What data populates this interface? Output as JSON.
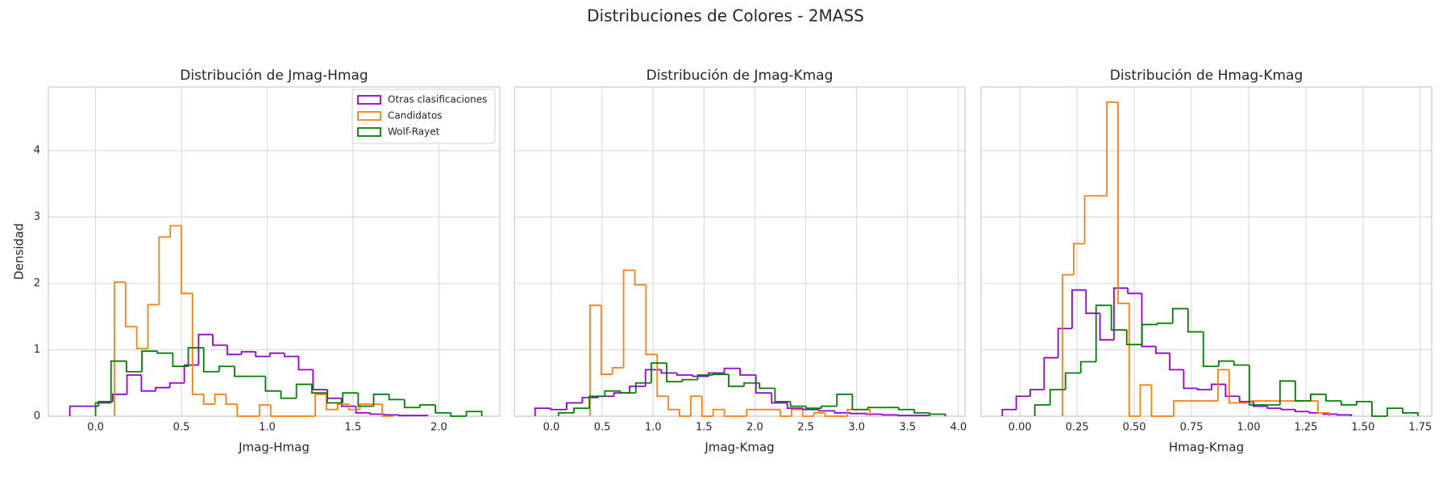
{
  "title": "Distribuciones de Colores - 2MASS",
  "chart_data": [
    {
      "type": "histogram",
      "title": "Distribución de Jmag-Hmag",
      "xlabel": "Jmag-Hmag",
      "ylabel": "Densidad",
      "xlim": [
        -0.275,
        2.355
      ],
      "ylim": [
        0,
        4.96
      ],
      "xticks": [
        {
          "value": 0,
          "label": "0.0"
        },
        {
          "value": 0.5,
          "label": "0.5"
        },
        {
          "value": 1,
          "label": "1.0"
        },
        {
          "value": 1.5,
          "label": "1.5"
        },
        {
          "value": 2,
          "label": "2.0"
        }
      ],
      "yticks": [
        0,
        1,
        2,
        3,
        4
      ],
      "show_ytick_labels": true,
      "grid": true,
      "legend": "upper right",
      "series": [
        {
          "name": "Otras clasificaciones",
          "color": "#9400d3",
          "bins": [
            -0.15,
            -0.067,
            0.017,
            0.1,
            0.183,
            0.267,
            0.35,
            0.433,
            0.517,
            0.6,
            0.683,
            0.767,
            0.85,
            0.933,
            1.017,
            1.1,
            1.183,
            1.267,
            1.35,
            1.433,
            1.517,
            1.6,
            1.683,
            1.767,
            1.85,
            1.933
          ],
          "values": [
            0.15,
            0.15,
            0.22,
            0.33,
            0.62,
            0.38,
            0.43,
            0.5,
            0.77,
            1.23,
            1.07,
            0.93,
            0.97,
            0.9,
            0.95,
            0.9,
            0.7,
            0.4,
            0.27,
            0.15,
            0.05,
            0.03,
            0.02,
            0.01,
            0.01
          ]
        },
        {
          "name": "Candidatos",
          "color": "#ff7f0e",
          "bins": [
            0.11,
            0.175,
            0.24,
            0.305,
            0.37,
            0.435,
            0.5,
            0.565,
            0.63,
            0.695,
            0.76,
            0.825,
            0.89,
            0.955,
            1.02,
            1.085,
            1.15,
            1.215,
            1.28,
            1.345,
            1.41,
            1.475,
            1.54,
            1.605,
            1.67,
            1.735
          ],
          "values": [
            2.02,
            1.35,
            1.02,
            1.68,
            2.7,
            2.87,
            1.85,
            0.33,
            0.18,
            0.33,
            0.18,
            0,
            0,
            0.17,
            0,
            0,
            0,
            0,
            0.33,
            0.1,
            0.18,
            0.1,
            0.18,
            0.18,
            0
          ]
        },
        {
          "name": "Wolf-Rayet",
          "color": "#008000",
          "bins": [
            0,
            0.09,
            0.18,
            0.27,
            0.36,
            0.45,
            0.54,
            0.63,
            0.72,
            0.81,
            0.9,
            0.99,
            1.08,
            1.17,
            1.26,
            1.35,
            1.44,
            1.53,
            1.62,
            1.71,
            1.8,
            1.89,
            1.98,
            2.07,
            2.16,
            2.25
          ],
          "values": [
            0.2,
            0.83,
            0.67,
            0.98,
            0.95,
            0.75,
            1.03,
            0.67,
            0.75,
            0.6,
            0.6,
            0.38,
            0.27,
            0.48,
            0.35,
            0.2,
            0.35,
            0.15,
            0.33,
            0.25,
            0.13,
            0.17,
            0.05,
            0,
            0.07
          ]
        }
      ]
    },
    {
      "type": "histogram",
      "title": "Distribución de Jmag-Kmag",
      "xlabel": "Jmag-Kmag",
      "xlim": [
        -0.364,
        4.064
      ],
      "ylim": [
        0,
        4.96
      ],
      "xticks": [
        {
          "value": 0,
          "label": "0.0"
        },
        {
          "value": 0.5,
          "label": "0.5"
        },
        {
          "value": 1,
          "label": "1.0"
        },
        {
          "value": 1.5,
          "label": "1.5"
        },
        {
          "value": 2,
          "label": "2.0"
        },
        {
          "value": 2.5,
          "label": "2.5"
        },
        {
          "value": 3,
          "label": "3.0"
        },
        {
          "value": 3.5,
          "label": "3.5"
        },
        {
          "value": 4,
          "label": "4.0"
        }
      ],
      "yticks": [
        0,
        1,
        2,
        3,
        4
      ],
      "show_ytick_labels": false,
      "grid": true,
      "series": [
        {
          "name": "Otras clasificaciones",
          "color": "#9400d3",
          "bins": [
            -0.16,
            -0.005,
            0.15,
            0.305,
            0.46,
            0.615,
            0.77,
            0.925,
            1.08,
            1.235,
            1.39,
            1.545,
            1.7,
            1.855,
            2.01,
            2.165,
            2.32,
            2.475,
            2.63,
            2.785,
            2.94,
            3.095,
            3.25,
            3.405,
            3.56,
            3.715
          ],
          "values": [
            0.12,
            0.1,
            0.2,
            0.28,
            0.3,
            0.35,
            0.45,
            0.7,
            0.65,
            0.62,
            0.6,
            0.65,
            0.72,
            0.62,
            0.35,
            0.2,
            0.12,
            0.1,
            0.08,
            0.05,
            0.04,
            0.03,
            0.02,
            0.01,
            0.01
          ]
        },
        {
          "name": "Candidatos",
          "color": "#ff7f0e",
          "bins": [
            0.38,
            0.49,
            0.6,
            0.71,
            0.82,
            0.93,
            1.04,
            1.15,
            1.26,
            1.37,
            1.48,
            1.59,
            1.7,
            1.81,
            1.92,
            2.03,
            2.14,
            2.25,
            2.36,
            2.47,
            2.58,
            2.69,
            2.8,
            2.91,
            3.02,
            3.13
          ],
          "values": [
            1.67,
            0.63,
            0.73,
            2.2,
            1.98,
            0.93,
            0.3,
            0.1,
            0,
            0.3,
            0,
            0.1,
            0,
            0,
            0.1,
            0.1,
            0.1,
            0,
            0.1,
            0,
            0.05,
            0,
            0,
            0.1,
            0.1
          ]
        },
        {
          "name": "Wolf-Rayet",
          "color": "#008000",
          "bins": [
            0.07,
            0.222,
            0.374,
            0.526,
            0.678,
            0.83,
            0.982,
            1.134,
            1.286,
            1.438,
            1.59,
            1.742,
            1.894,
            2.046,
            2.198,
            2.35,
            2.502,
            2.654,
            2.806,
            2.958,
            3.11,
            3.262,
            3.414,
            3.566,
            3.718,
            3.87
          ],
          "values": [
            0.05,
            0.12,
            0.3,
            0.38,
            0.35,
            0.5,
            0.8,
            0.52,
            0.55,
            0.62,
            0.63,
            0.45,
            0.5,
            0.42,
            0.22,
            0.15,
            0.12,
            0.15,
            0.33,
            0.1,
            0.13,
            0.13,
            0.1,
            0.05,
            0.03
          ]
        }
      ]
    },
    {
      "type": "histogram",
      "title": "Distribución de Hmag-Kmag",
      "xlabel": "Hmag-Kmag",
      "xlim": [
        -0.17,
        1.8
      ],
      "ylim": [
        0,
        4.96
      ],
      "xticks": [
        {
          "value": 0,
          "label": "0.00"
        },
        {
          "value": 0.25,
          "label": "0.25"
        },
        {
          "value": 0.5,
          "label": "0.50"
        },
        {
          "value": 0.75,
          "label": "0.75"
        },
        {
          "value": 1,
          "label": "1.00"
        },
        {
          "value": 1.25,
          "label": "1.25"
        },
        {
          "value": 1.5,
          "label": "1.50"
        },
        {
          "value": 1.75,
          "label": "1.75"
        }
      ],
      "yticks": [
        0,
        1,
        2,
        3,
        4
      ],
      "show_ytick_labels": false,
      "grid": true,
      "series": [
        {
          "name": "Otras clasificaciones",
          "color": "#9400d3",
          "bins": [
            -0.077,
            -0.016,
            0.045,
            0.106,
            0.167,
            0.228,
            0.289,
            0.35,
            0.411,
            0.472,
            0.533,
            0.594,
            0.655,
            0.716,
            0.777,
            0.838,
            0.899,
            0.96,
            1.021,
            1.082,
            1.143,
            1.204,
            1.265,
            1.326,
            1.387,
            1.448
          ],
          "values": [
            0.1,
            0.3,
            0.4,
            0.88,
            1.32,
            1.9,
            1.55,
            1.15,
            1.93,
            1.85,
            1.05,
            0.95,
            0.7,
            0.42,
            0.4,
            0.48,
            0.3,
            0.22,
            0.15,
            0.12,
            0.1,
            0.07,
            0.05,
            0.03,
            0.02
          ]
        },
        {
          "name": "Candidatos",
          "color": "#ff7f0e",
          "bins": [
            0.186,
            0.235,
            0.283,
            0.332,
            0.38,
            0.429,
            0.478,
            0.526,
            0.575,
            0.623,
            0.672,
            0.72,
            0.769,
            0.818,
            0.866,
            0.915,
            0.963,
            1.012,
            1.06,
            1.109,
            1.158,
            1.206,
            1.255,
            1.303,
            1.352
          ],
          "values": [
            2.13,
            2.6,
            3.32,
            3.32,
            4.73,
            1.7,
            0,
            0.47,
            0,
            0,
            0.23,
            0.23,
            0.23,
            0.23,
            0.7,
            0.2,
            0.2,
            0.23,
            0.23,
            0.23,
            0.23,
            0.23,
            0.23,
            0.05
          ]
        },
        {
          "name": "Wolf-Rayet",
          "color": "#008000",
          "bins": [
            0.065,
            0.132,
            0.199,
            0.266,
            0.333,
            0.4,
            0.467,
            0.534,
            0.601,
            0.668,
            0.735,
            0.802,
            0.869,
            0.936,
            1.003,
            1.07,
            1.137,
            1.204,
            1.271,
            1.338,
            1.405,
            1.472,
            1.539,
            1.606,
            1.673,
            1.74
          ],
          "values": [
            0.17,
            0.4,
            0.65,
            0.82,
            1.67,
            1.3,
            1.08,
            1.38,
            1.4,
            1.62,
            1.27,
            0.75,
            0.83,
            0.77,
            0.17,
            0.17,
            0.53,
            0.23,
            0.33,
            0.23,
            0.17,
            0.22,
            0,
            0.12,
            0.05
          ]
        }
      ]
    }
  ]
}
